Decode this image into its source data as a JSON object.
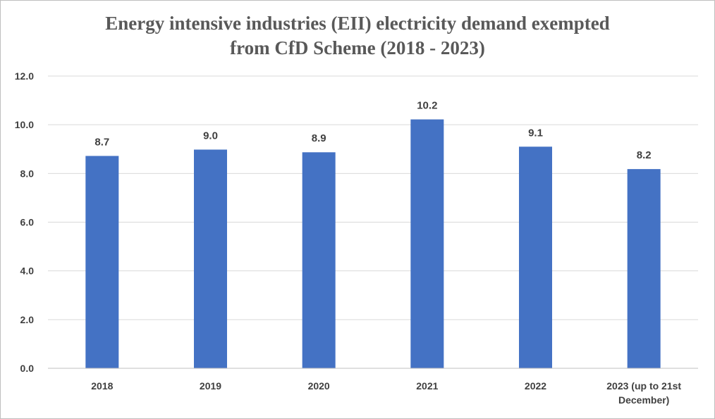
{
  "chart_data": {
    "type": "bar",
    "title": "Energy intensive industries (EII) electricity demand exempted from CfD Scheme (2018 - 2023)",
    "title_lines": [
      "Energy intensive industries (EII) electricity demand exempted",
      "from CfD Scheme (2018 - 2023)"
    ],
    "categories": [
      "2018",
      "2019",
      "2020",
      "2021",
      "2022",
      "2023 (up to 21st December)"
    ],
    "category_lines": [
      [
        "2018"
      ],
      [
        "2019"
      ],
      [
        "2020"
      ],
      [
        "2021"
      ],
      [
        "2022"
      ],
      [
        "2023 (up to 21st",
        "December)"
      ]
    ],
    "values": [
      8.72,
      8.98,
      8.87,
      10.22,
      9.1,
      8.18
    ],
    "data_labels": [
      "8.7",
      "9.0",
      "8.9",
      "10.2",
      "9.1",
      "8.2"
    ],
    "yticks": [
      "0.0",
      "2.0",
      "4.0",
      "6.0",
      "8.0",
      "10.0",
      "12.0"
    ],
    "ylim": [
      0,
      12
    ],
    "xlabel": "",
    "ylabel": "",
    "grid": true,
    "legend": "none",
    "colors": {
      "bar": "#4472C4",
      "grid": "#d9d9d9",
      "text": "#404040",
      "title": "#595959"
    }
  }
}
